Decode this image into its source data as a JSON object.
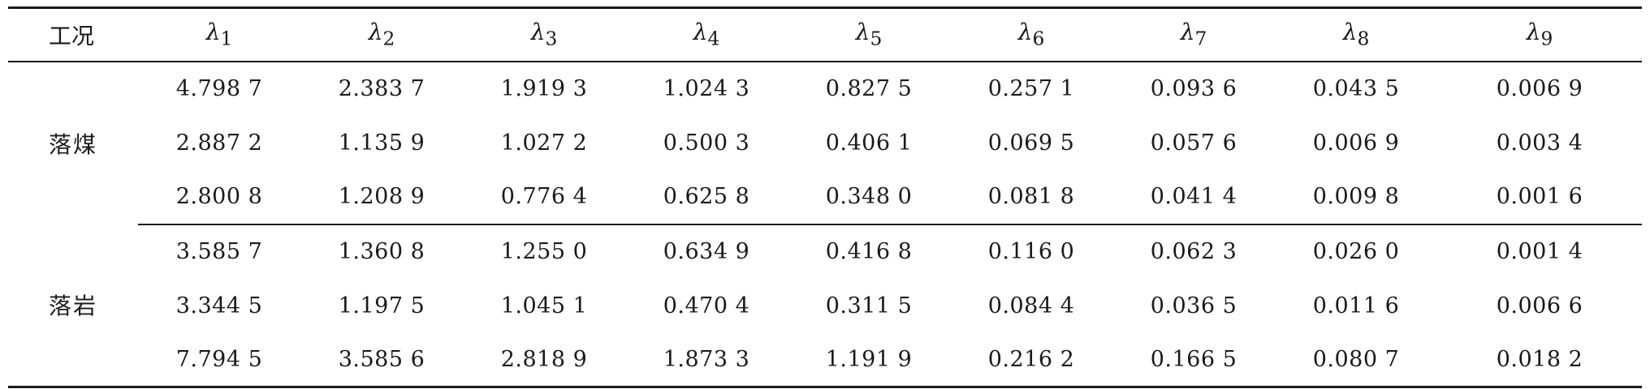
{
  "table": {
    "header": {
      "condition": "工况",
      "lambda_symbol": "λ",
      "lambda_indices": [
        "1",
        "2",
        "3",
        "4",
        "5",
        "6",
        "7",
        "8",
        "9"
      ]
    },
    "groups": [
      {
        "label": "落煤",
        "rows": [
          [
            "4.798 7",
            "2.383 7",
            "1.919 3",
            "1.024 3",
            "0.827 5",
            "0.257 1",
            "0.093 6",
            "0.043 5",
            "0.006 9"
          ],
          [
            "2.887 2",
            "1.135 9",
            "1.027 2",
            "0.500 3",
            "0.406 1",
            "0.069 5",
            "0.057 6",
            "0.006 9",
            "0.003 4"
          ],
          [
            "2.800 8",
            "1.208 9",
            "0.776 4",
            "0.625 8",
            "0.348 0",
            "0.081 8",
            "0.041 4",
            "0.009 8",
            "0.001 6"
          ]
        ]
      },
      {
        "label": "落岩",
        "rows": [
          [
            "3.585 7",
            "1.360 8",
            "1.255 0",
            "0.634 9",
            "0.416 8",
            "0.116 0",
            "0.062 3",
            "0.026 0",
            "0.001 4"
          ],
          [
            "3.344 5",
            "1.197 5",
            "1.045 1",
            "0.470 4",
            "0.311 5",
            "0.084 4",
            "0.036 5",
            "0.011 6",
            "0.006 6"
          ],
          [
            "7.794 5",
            "3.585 6",
            "2.818 9",
            "1.873 3",
            "1.191 9",
            "0.216 2",
            "0.166 5",
            "0.080 7",
            "0.018 2"
          ]
        ]
      }
    ]
  }
}
